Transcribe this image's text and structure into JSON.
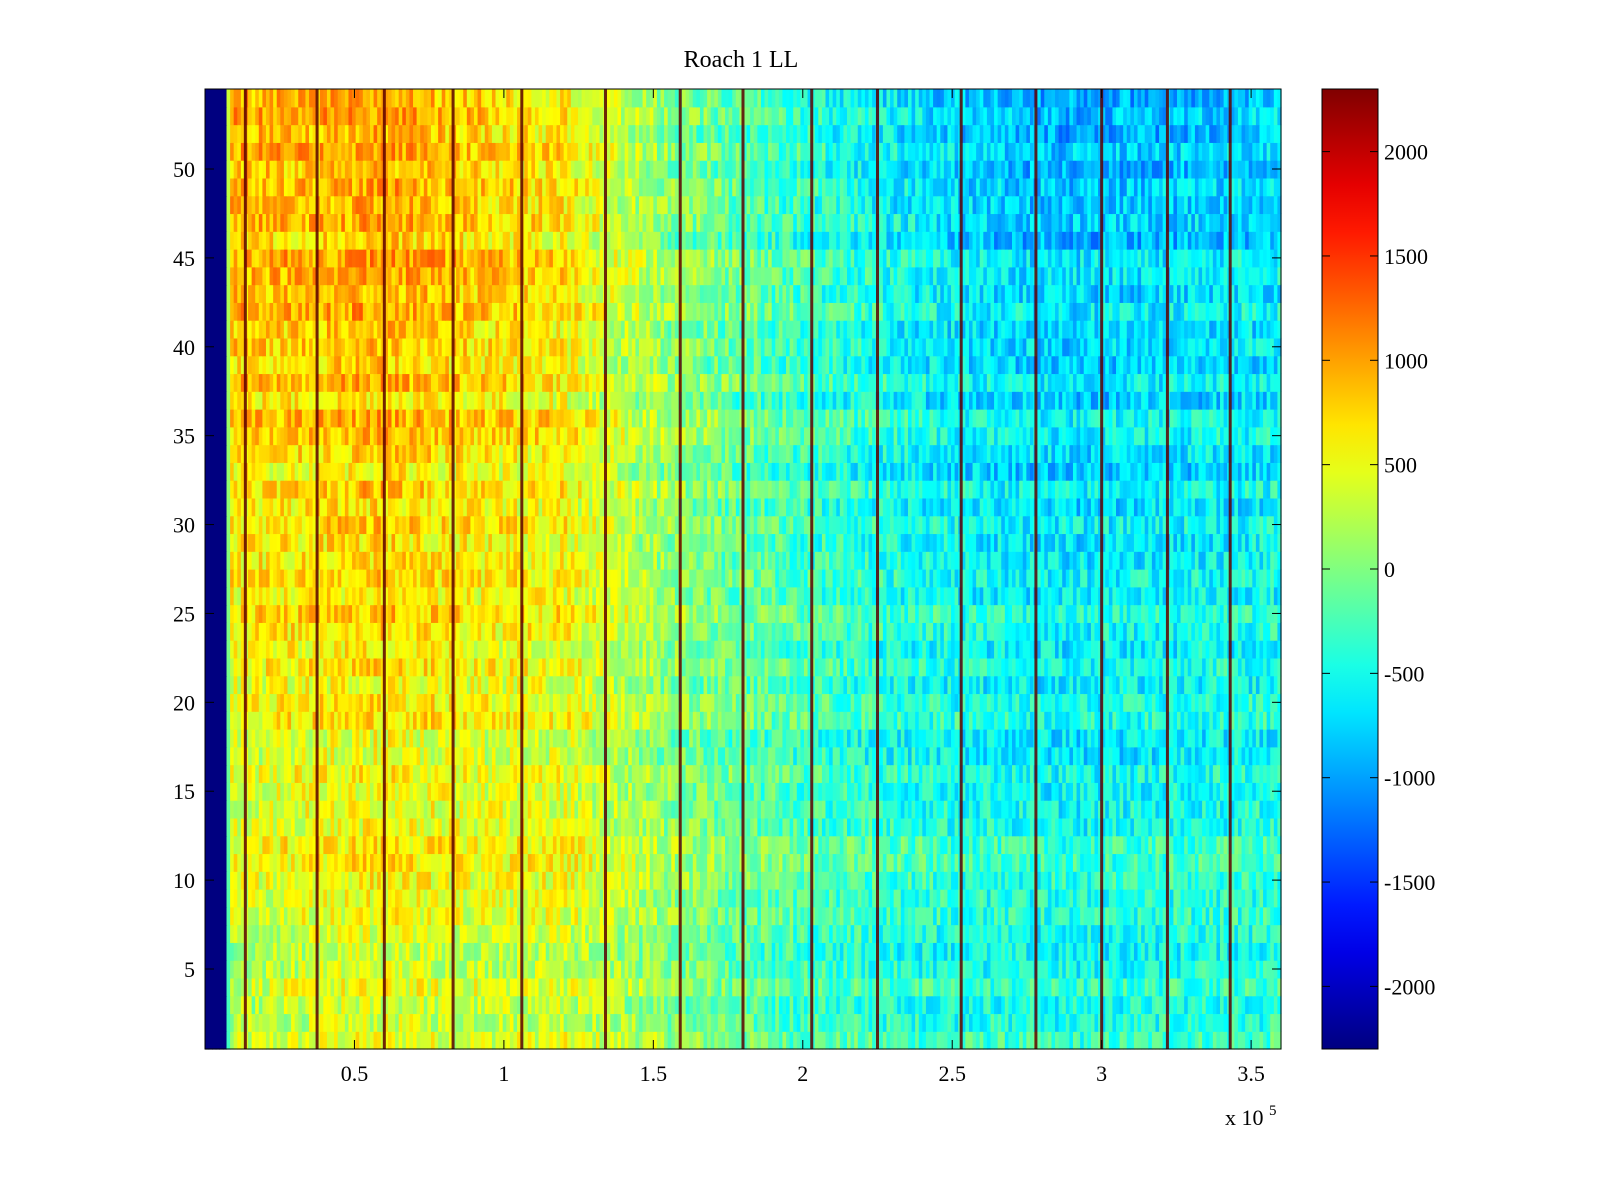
{
  "chart_data": {
    "type": "heatmap",
    "title": "Roach 1 LL",
    "xlabel": "",
    "ylabel": "",
    "x_scale_label": "x 10",
    "x_scale_exponent": "5",
    "xlim": [
      0,
      3.6
    ],
    "ylim": [
      0.5,
      54.5
    ],
    "x_ticks": [
      0.5,
      1,
      1.5,
      2,
      2.5,
      3,
      3.5
    ],
    "x_tick_labels": [
      "0.5",
      "1",
      "1.5",
      "2",
      "2.5",
      "3",
      "3.5"
    ],
    "y_ticks": [
      5,
      10,
      15,
      20,
      25,
      30,
      35,
      40,
      45,
      50
    ],
    "y_tick_labels": [
      "5",
      "10",
      "15",
      "20",
      "25",
      "30",
      "35",
      "40",
      "45",
      "50"
    ],
    "rows": 54,
    "colormap": "jet",
    "clim": [
      -2300,
      2300
    ],
    "colorbar_ticks": [
      2000,
      1500,
      1000,
      500,
      0,
      -500,
      -1000,
      -1500,
      -2000
    ],
    "colorbar_tick_labels": [
      "2000",
      "1500",
      "1000",
      "500",
      "0",
      "-500",
      "-1000",
      "-1500",
      "-2000"
    ],
    "trend_x": [
      0,
      0.07,
      0.08,
      0.3,
      0.6,
      0.9,
      1.2,
      1.4,
      1.6,
      1.8,
      2.0,
      2.3,
      2.6,
      2.9,
      3.2,
      3.6
    ],
    "trend_lower_rows": [
      -2300,
      -2300,
      200,
      350,
      450,
      350,
      400,
      250,
      50,
      -100,
      -200,
      -300,
      -350,
      -400,
      -350,
      -300
    ],
    "trend_upper_rows": [
      -2300,
      -2300,
      1000,
      950,
      1050,
      850,
      700,
      300,
      0,
      -150,
      -350,
      -600,
      -800,
      -900,
      -850,
      -750
    ],
    "vertical_line_x": [
      0.135,
      0.375,
      0.6,
      0.83,
      1.06,
      1.34,
      1.59,
      1.8,
      2.03,
      2.25,
      2.53,
      2.78,
      3.0,
      3.22,
      3.43
    ],
    "grid": false,
    "colorbar_position": "right"
  }
}
